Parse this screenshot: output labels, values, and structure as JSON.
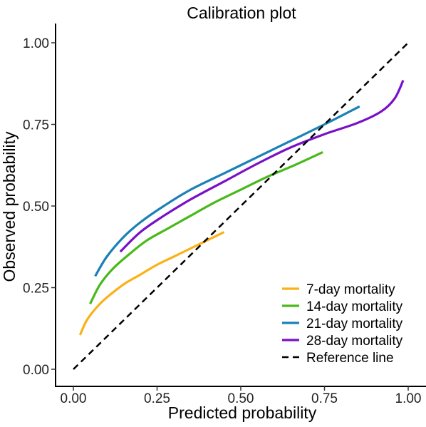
{
  "chart_data": {
    "type": "line",
    "title": "Calibration plot",
    "xlabel": "Predicted probability",
    "ylabel": "Observed probability",
    "xlim": [
      0,
      1
    ],
    "ylim": [
      0,
      1
    ],
    "x_ticks": [
      0,
      0.25,
      0.5,
      0.75,
      1
    ],
    "x_tick_labels": [
      "0.00",
      "0.25",
      "0.50",
      "0.75",
      "1.00"
    ],
    "y_ticks": [
      0,
      0.25,
      0.5,
      0.75,
      1
    ],
    "y_tick_labels": [
      "0.00",
      "0.25",
      "0.50",
      "0.75",
      "1.00"
    ],
    "grid": false,
    "legend_position": "bottom-right",
    "series": [
      {
        "name": "7-day mortality",
        "color": "#FBB116",
        "x": [
          0.02,
          0.04,
          0.07,
          0.1,
          0.15,
          0.2,
          0.25,
          0.3,
          0.35,
          0.4,
          0.45
        ],
        "y": [
          0.105,
          0.15,
          0.19,
          0.22,
          0.26,
          0.29,
          0.32,
          0.345,
          0.37,
          0.395,
          0.42
        ]
      },
      {
        "name": "14-day mortality",
        "color": "#48B91A",
        "x": [
          0.05,
          0.08,
          0.12,
          0.17,
          0.22,
          0.28,
          0.35,
          0.42,
          0.5,
          0.58,
          0.66,
          0.745
        ],
        "y": [
          0.2,
          0.26,
          0.31,
          0.355,
          0.395,
          0.43,
          0.47,
          0.51,
          0.55,
          0.59,
          0.625,
          0.665
        ]
      },
      {
        "name": "21-day mortality",
        "color": "#1A81B8",
        "x": [
          0.065,
          0.1,
          0.15,
          0.2,
          0.27,
          0.35,
          0.45,
          0.55,
          0.65,
          0.75,
          0.855
        ],
        "y": [
          0.285,
          0.345,
          0.405,
          0.45,
          0.5,
          0.55,
          0.6,
          0.65,
          0.7,
          0.75,
          0.805
        ]
      },
      {
        "name": "28-day mortality",
        "color": "#7810C8",
        "x": [
          0.14,
          0.2,
          0.27,
          0.35,
          0.45,
          0.55,
          0.65,
          0.75,
          0.85,
          0.92,
          0.96,
          0.985
        ],
        "y": [
          0.36,
          0.42,
          0.47,
          0.52,
          0.575,
          0.63,
          0.68,
          0.72,
          0.755,
          0.79,
          0.83,
          0.885
        ]
      },
      {
        "name": "Reference line",
        "color": "#000000",
        "dashed": true,
        "x": [
          0,
          1
        ],
        "y": [
          0,
          1
        ]
      }
    ]
  }
}
